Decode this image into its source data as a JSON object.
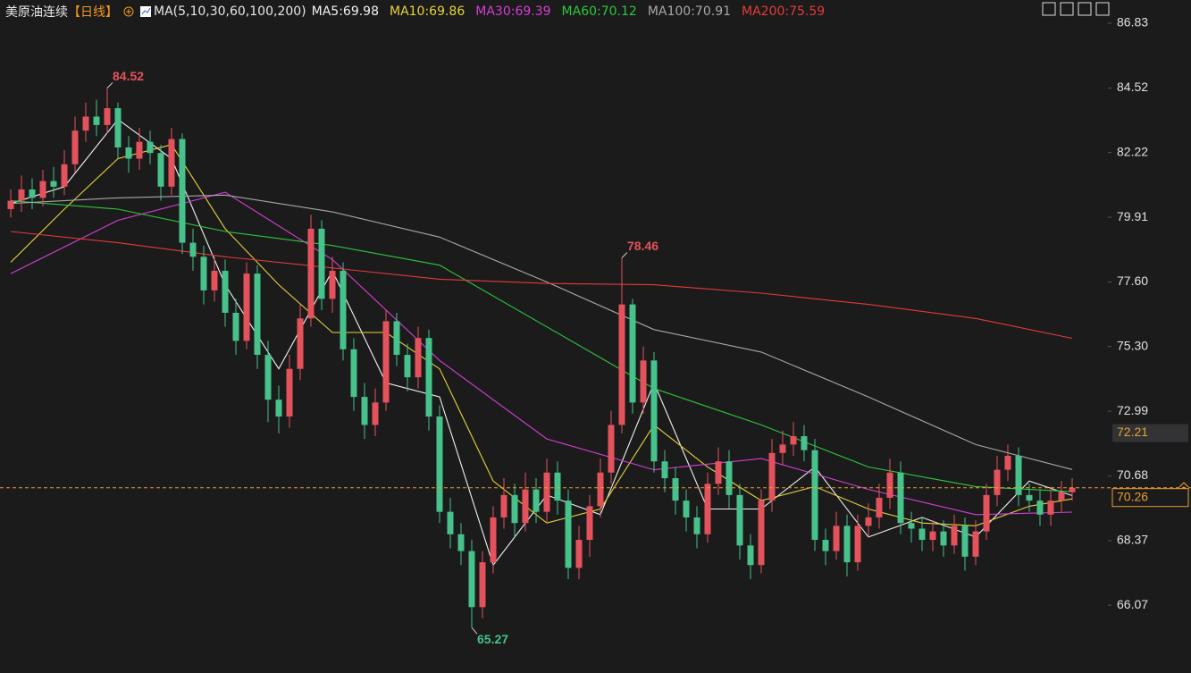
{
  "header": {
    "title": "美原油连续",
    "period": "【日线】",
    "ma_label": "MA(5,10,30,60,100,200)"
  },
  "chart_data": {
    "type": "candlestick",
    "ylim": [
      63.65,
      87.66
    ],
    "yticks": [
      86.83,
      84.52,
      82.22,
      79.91,
      {
        "value": 77.6,
        "label": "77.60"
      },
      {
        "value": 75.3,
        "label": "75.30"
      },
      72.99,
      70.68,
      68.37,
      66.07
    ],
    "up_color": "#e4525c",
    "down_color": "#46c28a",
    "crosshair_value": 72.21,
    "open": [
      80.2,
      80.5,
      80.9,
      80.6,
      81.2,
      81.0,
      81.8,
      83.0,
      83.5,
      83.2,
      83.8,
      82.4,
      82.0,
      82.6,
      82.2,
      81.0,
      82.7,
      79.0,
      78.5,
      77.3,
      78.0,
      76.5,
      75.5,
      77.9,
      75.0,
      73.4,
      72.8,
      74.5,
      76.3,
      79.5,
      77.0,
      78.0,
      75.2,
      73.5,
      72.5,
      73.3,
      76.2,
      75.0,
      74.2,
      75.6,
      72.8,
      69.4,
      68.6,
      68.0,
      66.0,
      67.6,
      69.2,
      70.0,
      69.0,
      70.2,
      69.4,
      70.8,
      69.8,
      67.4,
      68.4,
      69.6,
      70.8,
      72.5,
      76.8,
      73.3,
      74.8,
      71.2,
      70.6,
      69.8,
      69.2,
      68.6,
      70.4,
      71.2,
      70.0,
      68.2,
      67.5,
      69.8,
      71.5,
      71.8,
      72.1,
      71.6,
      68.4,
      68.0,
      68.9,
      67.6,
      68.9,
      69.2,
      69.9,
      70.8,
      69.0,
      68.8,
      68.4,
      68.7,
      68.2,
      68.9,
      67.8,
      68.7,
      70.0,
      70.9,
      71.4,
      70.0,
      69.8,
      69.3,
      69.8,
      70.1
    ],
    "high": [
      80.9,
      81.4,
      81.3,
      81.6,
      81.7,
      82.3,
      83.5,
      84.0,
      84.1,
      84.52,
      84.0,
      82.8,
      83.1,
      83.0,
      82.5,
      83.1,
      82.9,
      79.5,
      78.9,
      78.5,
      78.4,
      77.0,
      78.3,
      78.2,
      75.5,
      73.9,
      75.0,
      76.8,
      80.0,
      79.8,
      78.5,
      78.3,
      75.6,
      74.0,
      73.8,
      76.6,
      76.5,
      75.4,
      76.0,
      75.9,
      73.2,
      69.9,
      69.0,
      68.4,
      68.0,
      69.6,
      70.6,
      70.4,
      70.8,
      70.6,
      71.3,
      71.2,
      70.2,
      68.9,
      70.0,
      71.3,
      73.0,
      78.46,
      77.0,
      75.3,
      75.1,
      71.6,
      71.0,
      70.2,
      69.6,
      70.8,
      71.7,
      71.6,
      70.4,
      68.6,
      70.2,
      72.0,
      72.3,
      72.6,
      72.5,
      72.0,
      68.8,
      69.4,
      69.3,
      69.3,
      69.7,
      70.4,
      71.3,
      71.2,
      69.4,
      69.2,
      69.1,
      69.1,
      69.3,
      69.2,
      69.1,
      70.4,
      71.4,
      71.8,
      71.7,
      70.4,
      70.2,
      70.3,
      70.5,
      70.6
    ],
    "low": [
      79.9,
      80.1,
      80.2,
      80.3,
      80.6,
      80.7,
      81.5,
      82.6,
      82.8,
      82.9,
      82.0,
      81.5,
      81.6,
      81.8,
      80.5,
      80.7,
      78.6,
      78.0,
      76.8,
      76.9,
      76.0,
      75.0,
      75.2,
      74.5,
      72.6,
      72.2,
      72.4,
      74.1,
      76.0,
      76.6,
      76.5,
      74.8,
      73.0,
      72.0,
      72.1,
      73.0,
      74.6,
      73.7,
      73.8,
      72.3,
      69.0,
      68.1,
      67.5,
      65.27,
      65.6,
      67.2,
      68.8,
      68.5,
      68.7,
      69.0,
      69.0,
      69.3,
      67.0,
      67.0,
      67.8,
      69.2,
      70.4,
      72.2,
      72.9,
      72.9,
      70.8,
      70.1,
      69.3,
      68.7,
      68.1,
      68.3,
      70.0,
      69.5,
      67.7,
      67.0,
      67.2,
      69.4,
      71.1,
      71.4,
      71.2,
      68.0,
      67.5,
      67.7,
      67.1,
      67.3,
      68.5,
      68.8,
      69.5,
      68.6,
      68.3,
      68.0,
      68.0,
      67.8,
      67.9,
      67.3,
      67.5,
      68.4,
      69.6,
      70.5,
      69.6,
      69.4,
      68.9,
      68.9,
      69.4,
      69.8
    ],
    "close": [
      80.5,
      80.9,
      80.6,
      81.2,
      81.0,
      81.8,
      83.0,
      83.5,
      83.2,
      83.8,
      82.4,
      82.0,
      82.6,
      82.2,
      81.0,
      82.7,
      79.0,
      78.5,
      77.3,
      78.0,
      76.5,
      75.5,
      77.9,
      75.0,
      73.4,
      72.8,
      74.5,
      76.3,
      79.5,
      77.0,
      78.0,
      75.2,
      73.5,
      72.5,
      73.3,
      76.2,
      75.0,
      74.2,
      75.6,
      72.8,
      69.4,
      68.6,
      68.0,
      66.0,
      67.6,
      69.2,
      70.0,
      69.0,
      70.2,
      69.4,
      70.8,
      69.8,
      67.4,
      68.4,
      69.6,
      70.8,
      72.5,
      76.8,
      73.3,
      74.8,
      71.2,
      70.6,
      69.8,
      69.2,
      68.6,
      70.4,
      71.2,
      70.0,
      68.2,
      67.5,
      69.8,
      71.5,
      71.8,
      72.1,
      71.6,
      68.4,
      68.0,
      68.9,
      67.6,
      68.9,
      69.2,
      69.9,
      70.8,
      69.0,
      68.8,
      68.4,
      68.7,
      68.2,
      68.9,
      67.8,
      68.7,
      70.0,
      70.9,
      71.4,
      70.0,
      69.8,
      69.3,
      69.8,
      70.1,
      70.26
    ],
    "ma_series": [
      {
        "name": "MA5:69.98",
        "color": "#f2f2f2",
        "x": [
          0,
          5,
          10,
          15,
          20,
          25,
          30,
          35,
          40,
          45,
          50,
          55,
          60,
          65,
          70,
          75,
          80,
          85,
          90,
          95,
          99
        ],
        "values": [
          80.4,
          81.0,
          83.4,
          82.0,
          77.5,
          74.5,
          78.0,
          74.0,
          73.5,
          67.5,
          70.0,
          69.3,
          74.0,
          69.5,
          69.5,
          71.0,
          68.5,
          69.2,
          68.5,
          70.5,
          69.98
        ]
      },
      {
        "name": "MA10:69.86",
        "color": "#e6d33c",
        "x": [
          0,
          5,
          10,
          15,
          20,
          25,
          30,
          35,
          40,
          45,
          50,
          55,
          60,
          65,
          70,
          75,
          80,
          85,
          90,
          95,
          99
        ],
        "values": [
          78.3,
          80.2,
          82.0,
          82.5,
          79.5,
          77.5,
          75.8,
          75.8,
          74.5,
          70.5,
          69.0,
          69.5,
          72.5,
          71.0,
          69.8,
          70.3,
          69.5,
          69.0,
          68.9,
          69.6,
          69.86
        ]
      },
      {
        "name": "MA30:69.39",
        "color": "#d53fd5",
        "x": [
          0,
          10,
          20,
          30,
          40,
          50,
          60,
          70,
          80,
          90,
          99
        ],
        "values": [
          77.9,
          79.8,
          80.8,
          78.4,
          74.8,
          72.0,
          70.9,
          71.3,
          70.2,
          69.3,
          69.39
        ]
      },
      {
        "name": "MA60:70.12",
        "color": "#2fc63c",
        "x": [
          0,
          10,
          20,
          30,
          40,
          50,
          60,
          70,
          80,
          90,
          99
        ],
        "values": [
          80.5,
          80.2,
          79.4,
          78.9,
          78.2,
          76.0,
          73.8,
          72.5,
          71.0,
          70.3,
          70.12
        ]
      },
      {
        "name": "MA100:70.91",
        "color": "#a8a8a8",
        "x": [
          0,
          10,
          20,
          30,
          40,
          50,
          60,
          70,
          80,
          90,
          99
        ],
        "values": [
          80.4,
          80.6,
          80.7,
          80.1,
          79.2,
          77.6,
          75.9,
          75.1,
          73.5,
          71.8,
          70.91
        ]
      },
      {
        "name": "MA200:75.59",
        "color": "#e43a3a",
        "x": [
          0,
          10,
          20,
          30,
          40,
          50,
          60,
          70,
          80,
          90,
          99
        ],
        "values": [
          79.4,
          79.0,
          78.5,
          78.1,
          77.7,
          77.55,
          77.5,
          77.2,
          76.8,
          76.3,
          75.59
        ]
      }
    ]
  }
}
